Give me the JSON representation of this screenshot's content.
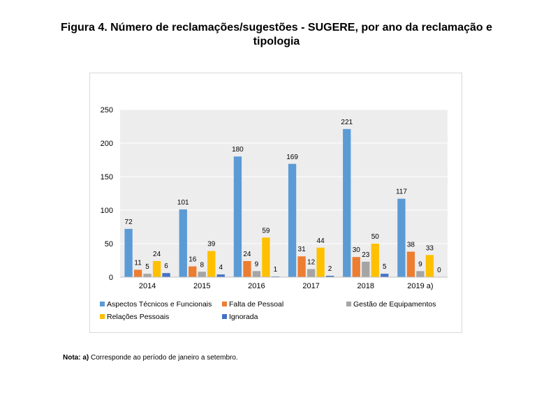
{
  "figure": {
    "title_line1": "Figura 4. Número de reclamações/sugestões - SUGERE, por ano da reclamação e",
    "title_line2": "tipologia",
    "note_label": "Nota: a)",
    "note_text": "Corresponde ao período de janeiro a setembro."
  },
  "chart_data": {
    "type": "bar",
    "categories": [
      "2014",
      "2015",
      "2016",
      "2017",
      "2018",
      "2019 a)"
    ],
    "series": [
      {
        "name": "Aspectos Técnicos e Funcionais",
        "color": "#5B9BD5",
        "values": [
          72,
          101,
          180,
          169,
          221,
          117
        ]
      },
      {
        "name": "Falta de Pessoal",
        "color": "#ED7D31",
        "values": [
          11,
          16,
          24,
          31,
          30,
          38
        ]
      },
      {
        "name": "Gestão de Equipamentos",
        "color": "#A5A5A5",
        "values": [
          5,
          8,
          9,
          12,
          23,
          9
        ]
      },
      {
        "name": "Relações Pessoais",
        "color": "#FFC000",
        "values": [
          24,
          39,
          59,
          44,
          50,
          33
        ]
      },
      {
        "name": "Ignorada",
        "color": "#4472C4",
        "values": [
          6,
          4,
          1,
          2,
          5,
          0
        ]
      }
    ],
    "ylim": [
      0,
      250
    ],
    "yticks": [
      0,
      50,
      100,
      150,
      200,
      250
    ],
    "grid": true,
    "plot_background": "#ededed",
    "gridline_color": "#ffffff",
    "legend_position": "bottom"
  }
}
